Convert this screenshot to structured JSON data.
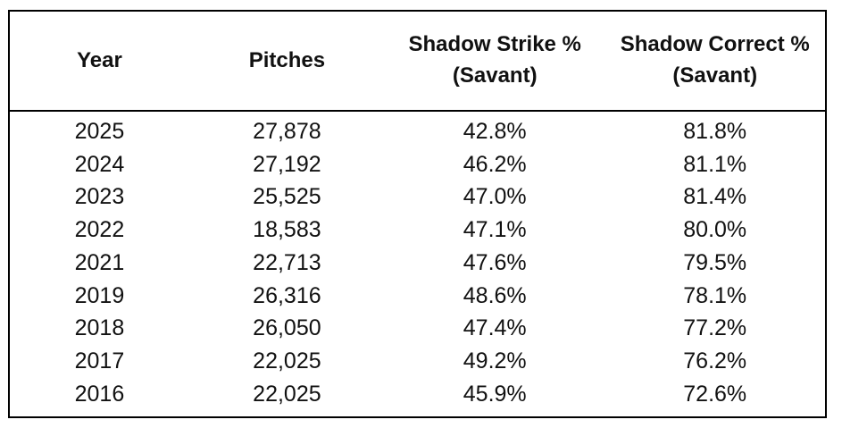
{
  "table": {
    "columns": [
      {
        "label_line1": "Year",
        "label_line2": ""
      },
      {
        "label_line1": "Pitches",
        "label_line2": ""
      },
      {
        "label_line1": "Shadow Strike %",
        "label_line2": "(Savant)"
      },
      {
        "label_line1": "Shadow Correct %",
        "label_line2": "(Savant)"
      }
    ],
    "rows": [
      {
        "year": "2025",
        "pitches": "27,878",
        "shadow_strike_pct": "42.8%",
        "shadow_correct_pct": "81.8%"
      },
      {
        "year": "2024",
        "pitches": "27,192",
        "shadow_strike_pct": "46.2%",
        "shadow_correct_pct": "81.1%"
      },
      {
        "year": "2023",
        "pitches": "25,525",
        "shadow_strike_pct": "47.0%",
        "shadow_correct_pct": "81.4%"
      },
      {
        "year": "2022",
        "pitches": "18,583",
        "shadow_strike_pct": "47.1%",
        "shadow_correct_pct": "80.0%"
      },
      {
        "year": "2021",
        "pitches": "22,713",
        "shadow_strike_pct": "47.6%",
        "shadow_correct_pct": "79.5%"
      },
      {
        "year": "2019",
        "pitches": "26,316",
        "shadow_strike_pct": "48.6%",
        "shadow_correct_pct": "78.1%"
      },
      {
        "year": "2018",
        "pitches": "26,050",
        "shadow_strike_pct": "47.4%",
        "shadow_correct_pct": "77.2%"
      },
      {
        "year": "2017",
        "pitches": "22,025",
        "shadow_strike_pct": "49.2%",
        "shadow_correct_pct": "76.2%"
      },
      {
        "year": "2016",
        "pitches": "22,025",
        "shadow_strike_pct": "45.9%",
        "shadow_correct_pct": "72.6%"
      }
    ]
  },
  "colors": {
    "border": "#000000",
    "text": "#111111",
    "background": "#ffffff"
  },
  "chart_data": {
    "type": "table",
    "title": "",
    "columns": [
      "Year",
      "Pitches",
      "Shadow Strike % (Savant)",
      "Shadow Correct % (Savant)"
    ],
    "rows": [
      [
        "2025",
        27878,
        42.8,
        81.8
      ],
      [
        "2024",
        27192,
        46.2,
        81.1
      ],
      [
        "2023",
        25525,
        47.0,
        81.4
      ],
      [
        "2022",
        18583,
        47.1,
        80.0
      ],
      [
        "2021",
        22713,
        47.6,
        79.5
      ],
      [
        "2019",
        26316,
        48.6,
        78.1
      ],
      [
        "2018",
        26050,
        47.4,
        77.2
      ],
      [
        "2017",
        22025,
        49.2,
        76.2
      ],
      [
        "2016",
        22025,
        45.9,
        72.6
      ]
    ]
  }
}
